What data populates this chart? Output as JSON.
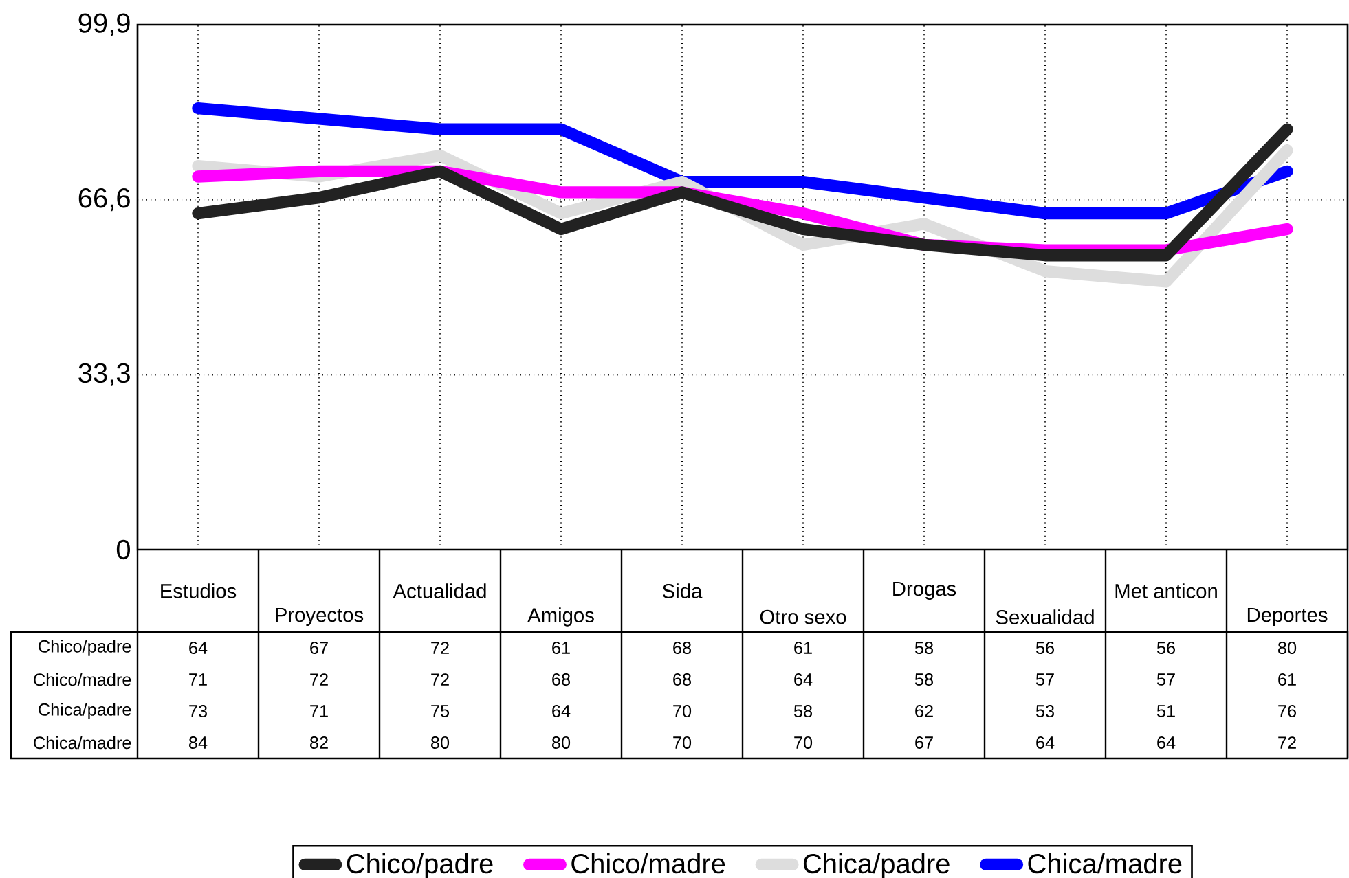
{
  "chart_data": {
    "type": "line",
    "categories": [
      "Estudios",
      "Proyectos",
      "Actualidad",
      "Amigos",
      "Sida",
      "Otro sexo",
      "Drogas",
      "Sexualidad",
      "Met anticon",
      "Deportes"
    ],
    "series": [
      {
        "name": "Chico/padre",
        "color": "#222222",
        "values": [
          64,
          67,
          72,
          61,
          68,
          61,
          58,
          56,
          56,
          80
        ]
      },
      {
        "name": "Chico/madre",
        "color": "#ff00ff",
        "values": [
          71,
          72,
          72,
          68,
          68,
          64,
          58,
          57,
          57,
          61
        ]
      },
      {
        "name": "Chica/padre",
        "color": "#dddddd",
        "values": [
          73,
          71,
          75,
          64,
          70,
          58,
          62,
          53,
          51,
          76
        ]
      },
      {
        "name": "Chica/madre",
        "color": "#0000ff",
        "values": [
          84,
          82,
          80,
          80,
          70,
          70,
          67,
          64,
          64,
          72
        ]
      }
    ],
    "ylim": [
      0,
      99.9
    ],
    "yticks": [
      0,
      {
        "value": 33.3,
        "label": "33,3"
      },
      {
        "value": 66.6,
        "label": "66,6"
      },
      {
        "value": 99.9,
        "label": "99,9"
      }
    ],
    "grid": true,
    "legend": "bottom",
    "data_labels": true,
    "marker": "none",
    "line_style": "solid"
  }
}
